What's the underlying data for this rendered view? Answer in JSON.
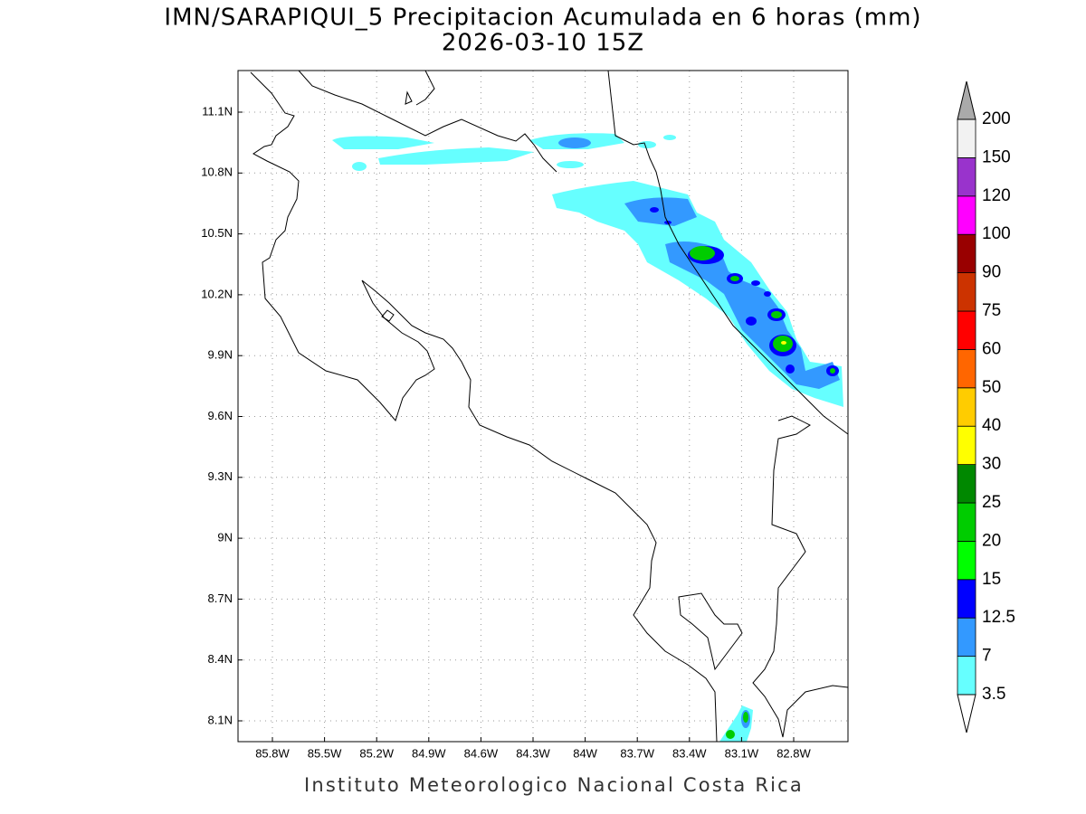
{
  "title": "IMN/SARAPIQUI_5 Precipitacion Acumulada en 6 horas (mm)",
  "subtitle": "2026-03-10 15Z",
  "lat_labels": [
    "11.1N",
    "10.8N",
    "10.5N",
    "10.2N",
    "9.9N",
    "9.6N",
    "9.3N",
    "9N",
    "8.7N",
    "8.4N",
    "8.1N"
  ],
  "lon_labels": [
    "85.8W",
    "85.5W",
    "85.2W",
    "84.9W",
    "84.6W",
    "84.3W",
    "84W",
    "83.7W",
    "83.4W",
    "83.1W",
    "82.8W"
  ],
  "colorbar": {
    "labels": [
      "3.5",
      "7",
      "12.5",
      "15",
      "20",
      "25",
      "30",
      "40",
      "50",
      "60",
      "75",
      "90",
      "100",
      "120",
      "150",
      "200"
    ],
    "colors": [
      "#ffffff",
      "#66ffff",
      "#3399ff",
      "#0000ff",
      "#00ff00",
      "#00cc00",
      "#008800",
      "#ffff00",
      "#ffcc00",
      "#ff6600",
      "#ff0000",
      "#cc3300",
      "#990000",
      "#ff00ff",
      "#9933cc",
      "#f2f2f2",
      "#aaaaaa"
    ]
  },
  "footer": "Instituto Meteorologico Nacional Costa Rica"
}
